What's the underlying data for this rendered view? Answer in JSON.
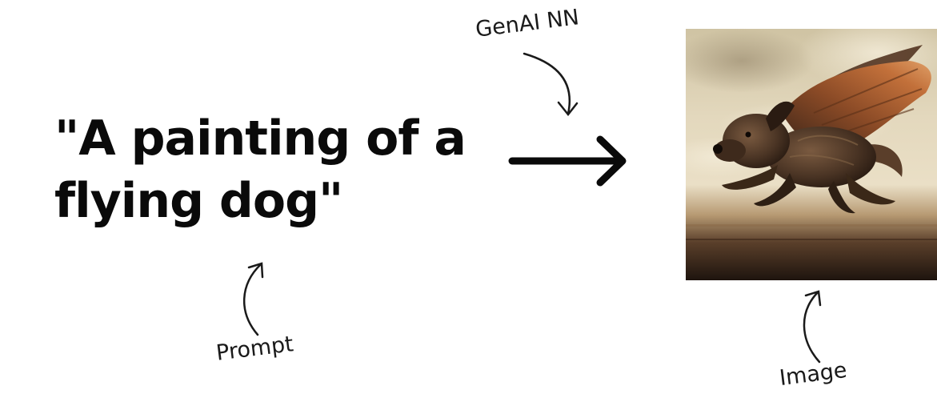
{
  "prompt": {
    "line1": "\"A painting of a",
    "line2": "flying dog\""
  },
  "annotations": {
    "genai": "GenAI NN",
    "prompt": "Prompt",
    "image": "Image"
  },
  "image": {
    "subject": "painting of a flying dog with brown wings",
    "palette": [
      "#dcd1b5",
      "#c9b692",
      "#6b4a2f",
      "#2a1c14",
      "#b05a2a"
    ]
  },
  "colors": {
    "text": "#0a0a0a",
    "arrow": "#0a0a0a"
  }
}
